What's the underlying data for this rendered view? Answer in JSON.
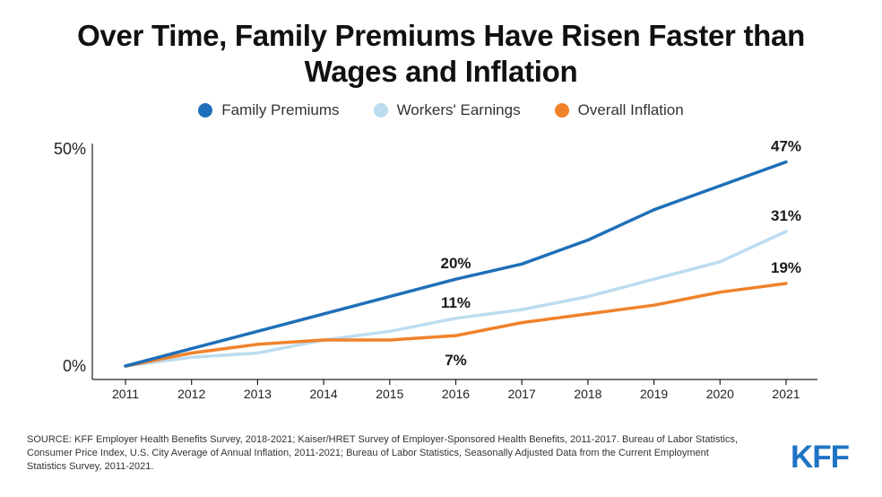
{
  "title_line1": "Over Time, Family Premiums Have Risen Faster than",
  "title_line2": "Wages and Inflation",
  "legend": [
    {
      "label": "Family Premiums",
      "color": "#1f6fb8"
    },
    {
      "label": "Workers' Earnings",
      "color": "#bcdcf0"
    },
    {
      "label": "Overall Inflation",
      "color": "#f0822a"
    }
  ],
  "chart_data": {
    "type": "line",
    "x": [
      "2011",
      "2012",
      "2013",
      "2014",
      "2015",
      "2016",
      "2017",
      "2018",
      "2019",
      "2020",
      "2021"
    ],
    "ylim": [
      0,
      50
    ],
    "ytick_labels": [
      "50%",
      "0%"
    ],
    "ytick_values": [
      50,
      0
    ],
    "series": [
      {
        "name": "Family Premiums",
        "color": "#1f6fb8",
        "values": [
          0,
          4,
          8,
          12,
          16,
          20,
          23.5,
          29,
          36,
          41.5,
          47
        ]
      },
      {
        "name": "Workers' Earnings",
        "color": "#bcdcf0",
        "values": [
          0,
          2,
          3,
          6,
          8,
          11,
          13,
          16,
          20,
          24,
          31
        ]
      },
      {
        "name": "Overall Inflation",
        "color": "#f0822a",
        "values": [
          0,
          3,
          5,
          6,
          6,
          7,
          10,
          12,
          14,
          17,
          19
        ]
      }
    ],
    "annotations": [
      {
        "text": "47%",
        "series": 0,
        "index": 10,
        "pos": "above"
      },
      {
        "text": "31%",
        "series": 1,
        "index": 10,
        "pos": "above"
      },
      {
        "text": "19%",
        "series": 2,
        "index": 10,
        "pos": "above"
      },
      {
        "text": "20%",
        "series": 0,
        "index": 5,
        "pos": "above"
      },
      {
        "text": "11%",
        "series": 1,
        "index": 5,
        "pos": "above"
      },
      {
        "text": "7%",
        "series": 2,
        "index": 5,
        "pos": "below"
      }
    ]
  },
  "source": "SOURCE: KFF Employer Health Benefits Survey, 2018-2021; Kaiser/HRET Survey of Employer-Sponsored Health Benefits, 2011-2017. Bureau of Labor Statistics, Consumer Price Index, U.S. City Average of Annual Inflation, 2011-2021; Bureau of Labor Statistics, Seasonally Adjusted Data from the Current Employment Statistics Survey, 2011-2021.",
  "logo": "KFF"
}
